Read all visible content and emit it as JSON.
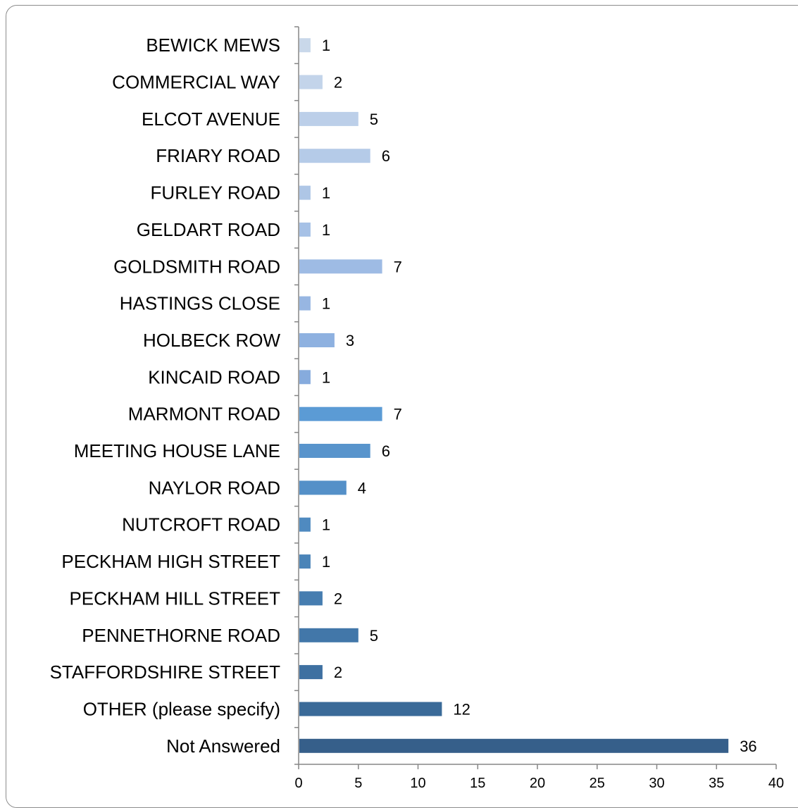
{
  "chart_data": {
    "type": "bar",
    "orientation": "horizontal",
    "categories": [
      "BEWICK MEWS",
      "COMMERCIAL WAY",
      "ELCOT AVENUE",
      "FRIARY ROAD",
      "FURLEY ROAD",
      "GELDART ROAD",
      "GOLDSMITH ROAD",
      "HASTINGS CLOSE",
      "HOLBECK ROW",
      "KINCAID ROAD",
      "MARMONT ROAD",
      "MEETING HOUSE LANE",
      "NAYLOR ROAD",
      "NUTCROFT ROAD",
      "PECKHAM HIGH STREET",
      "PECKHAM HILL STREET",
      "PENNETHORNE ROAD",
      "STAFFORDSHIRE STREET",
      "OTHER (please specify)",
      "Not Answered"
    ],
    "values": [
      1,
      2,
      5,
      6,
      1,
      1,
      7,
      1,
      3,
      1,
      7,
      6,
      4,
      1,
      1,
      2,
      5,
      2,
      12,
      36
    ],
    "data_labels": [
      "1",
      "2",
      "5",
      "6",
      "1",
      "1",
      "7",
      "1",
      "3",
      "1",
      "7",
      "6",
      "4",
      "1",
      "1",
      "2",
      "5",
      "2",
      "12",
      "36"
    ],
    "xlim": [
      0,
      40
    ],
    "xticks": [
      0,
      5,
      10,
      15,
      20,
      25,
      30,
      35,
      40
    ],
    "xtick_labels": [
      "0",
      "5",
      "10",
      "15",
      "20",
      "25",
      "30",
      "35",
      "40"
    ],
    "title": "",
    "xlabel": "",
    "ylabel": "",
    "grid": false,
    "legend": "none",
    "bar_colors": [
      "#c9d8ea",
      "#c3d4ea",
      "#bccfe9",
      "#b5cbe8",
      "#aec6e6",
      "#a6c1e6",
      "#9ebbe4",
      "#97b6e2",
      "#8eb1e0",
      "#86abdd",
      "#5b9bd5",
      "#5894cc",
      "#5490c8",
      "#4f8ac0",
      "#4a84b8",
      "#467db0",
      "#4277a9",
      "#3e70a1",
      "#3a6a98",
      "#365f8a"
    ],
    "axis_color": "#868686",
    "frame_color": "#8c8c8c"
  }
}
